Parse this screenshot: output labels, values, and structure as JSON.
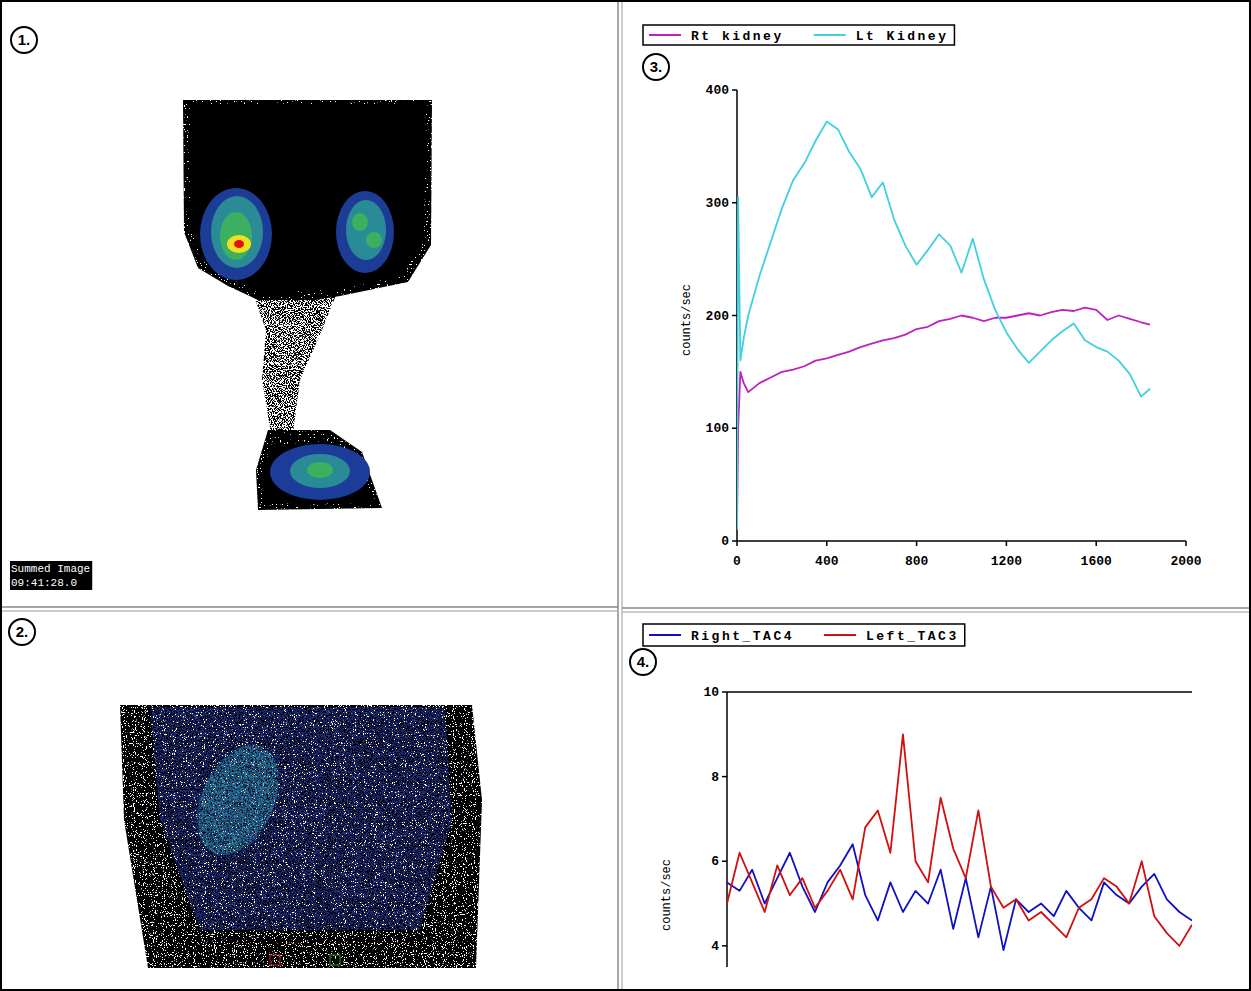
{
  "images": [
    {
      "label": "1.",
      "caption": [
        "Summed Image",
        "09:41:28.0"
      ]
    },
    {
      "label": "2."
    }
  ],
  "chart_data": [
    {
      "type": "line",
      "label": "3.",
      "ylabel": "counts/sec",
      "legend": "top",
      "grid": false,
      "x": [
        0,
        5,
        15,
        30,
        50,
        100,
        150,
        200,
        250,
        300,
        350,
        400,
        450,
        500,
        550,
        600,
        650,
        700,
        750,
        800,
        850,
        900,
        950,
        1000,
        1050,
        1100,
        1150,
        1200,
        1250,
        1300,
        1350,
        1400,
        1450,
        1500,
        1550,
        1600,
        1650,
        1700,
        1750,
        1800,
        1840
      ],
      "xlim": [
        0,
        2000
      ],
      "xticks": [
        0,
        400,
        800,
        1200,
        1600,
        2000
      ],
      "ylim": [
        0,
        400
      ],
      "yticks": [
        0,
        100,
        200,
        300,
        400
      ],
      "series": [
        {
          "name": "Rt kidney",
          "color": "#c020c0",
          "values": [
            10,
            100,
            150,
            140,
            132,
            140,
            145,
            150,
            152,
            155,
            160,
            162,
            165,
            168,
            172,
            175,
            178,
            180,
            183,
            188,
            190,
            195,
            197,
            200,
            198,
            195,
            198,
            198,
            200,
            202,
            200,
            203,
            205,
            204,
            207,
            205,
            196,
            200,
            197,
            194,
            192
          ]
        },
        {
          "name": "Lt Kidney",
          "color": "#40d0e0",
          "values": [
            10,
            305,
            160,
            180,
            200,
            235,
            265,
            295,
            320,
            335,
            355,
            372,
            365,
            345,
            330,
            305,
            318,
            285,
            262,
            245,
            258,
            272,
            262,
            238,
            268,
            232,
            205,
            185,
            170,
            158,
            168,
            178,
            186,
            193,
            178,
            172,
            168,
            160,
            148,
            128,
            135
          ]
        }
      ]
    },
    {
      "type": "line",
      "label": "4.",
      "ylabel": "counts/sec",
      "legend": "top",
      "grid": false,
      "tick_labels": "y",
      "x": [
        0,
        50,
        100,
        150,
        200,
        250,
        300,
        350,
        400,
        450,
        500,
        550,
        600,
        650,
        700,
        750,
        800,
        850,
        900,
        950,
        1000,
        1050,
        1100,
        1150,
        1200,
        1250,
        1300,
        1350,
        1400,
        1450,
        1500,
        1550,
        1600,
        1650,
        1700,
        1750,
        1800,
        1850
      ],
      "xlim": [
        0,
        1850
      ],
      "ylim": [
        3.5,
        10
      ],
      "yticks": [
        4,
        6,
        8,
        10
      ],
      "series": [
        {
          "name": "Right_TAC4",
          "color": "#1010c0",
          "values": [
            5.5,
            5.3,
            5.8,
            5.0,
            5.6,
            6.2,
            5.4,
            4.8,
            5.5,
            5.9,
            6.4,
            5.2,
            4.6,
            5.5,
            4.8,
            5.3,
            5.0,
            5.8,
            4.4,
            5.6,
            4.2,
            5.4,
            3.9,
            5.1,
            4.8,
            5.0,
            4.7,
            5.3,
            4.9,
            4.6,
            5.5,
            5.2,
            5.0,
            5.4,
            5.7,
            5.1,
            4.8,
            4.6
          ]
        },
        {
          "name": "Left_TAC3",
          "color": "#d01010",
          "values": [
            5.0,
            6.2,
            5.5,
            4.8,
            5.9,
            5.2,
            5.6,
            4.9,
            5.3,
            5.8,
            5.1,
            6.8,
            7.2,
            6.2,
            9.0,
            6.0,
            5.5,
            7.5,
            6.3,
            5.6,
            7.2,
            5.4,
            4.9,
            5.1,
            4.6,
            4.8,
            4.5,
            4.2,
            4.9,
            5.1,
            5.6,
            5.4,
            5.0,
            6.0,
            4.7,
            4.3,
            4.0,
            4.5
          ]
        }
      ]
    }
  ]
}
